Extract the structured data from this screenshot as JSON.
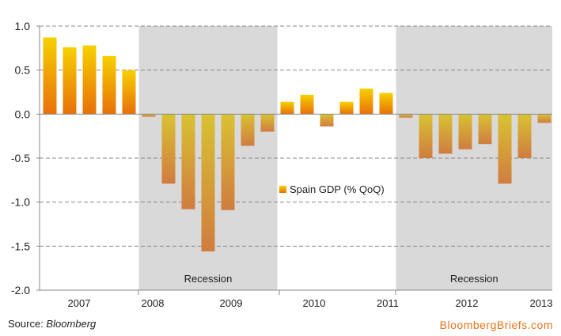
{
  "chart_data": {
    "type": "bar",
    "title": "",
    "xlabel": "",
    "ylabel": "",
    "ylim": [
      -2.0,
      1.0
    ],
    "yticks": [
      "1.0",
      "0.5",
      "0.0",
      "-0.5",
      "-1.0",
      "-1.5",
      "-2.0"
    ],
    "grid": true,
    "legend": {
      "label": "Spain GDP (% QoQ)",
      "placement": "center"
    },
    "year_labels": [
      "2007",
      "2008",
      "2009",
      "2010",
      "2011",
      "2012",
      "2013"
    ],
    "series": [
      {
        "name": "Spain GDP (% QoQ)",
        "values": [
          0.87,
          0.76,
          0.78,
          0.66,
          0.5,
          -0.03,
          -0.79,
          -1.08,
          -1.56,
          -1.09,
          -0.36,
          -0.2,
          0.14,
          0.22,
          -0.14,
          0.14,
          0.29,
          0.24,
          -0.04,
          -0.5,
          -0.45,
          -0.4,
          -0.34,
          -0.79,
          -0.5,
          -0.1
        ]
      }
    ],
    "shaded_regions": [
      {
        "label": "Recession",
        "start_index": 5,
        "end_index": 11
      },
      {
        "label": "Recession",
        "start_index": 18,
        "end_index": 25
      }
    ]
  },
  "footer": {
    "source_prefix": "Source: ",
    "source_name": "Bloomberg",
    "brand": "BloombergBriefs.com"
  },
  "colors": {
    "bar_top": "#f7d000",
    "bar_bottom": "#e8700a",
    "neg_top": "#dcc030",
    "neg_bottom": "#d08040",
    "shade": "#d9d9d9"
  }
}
